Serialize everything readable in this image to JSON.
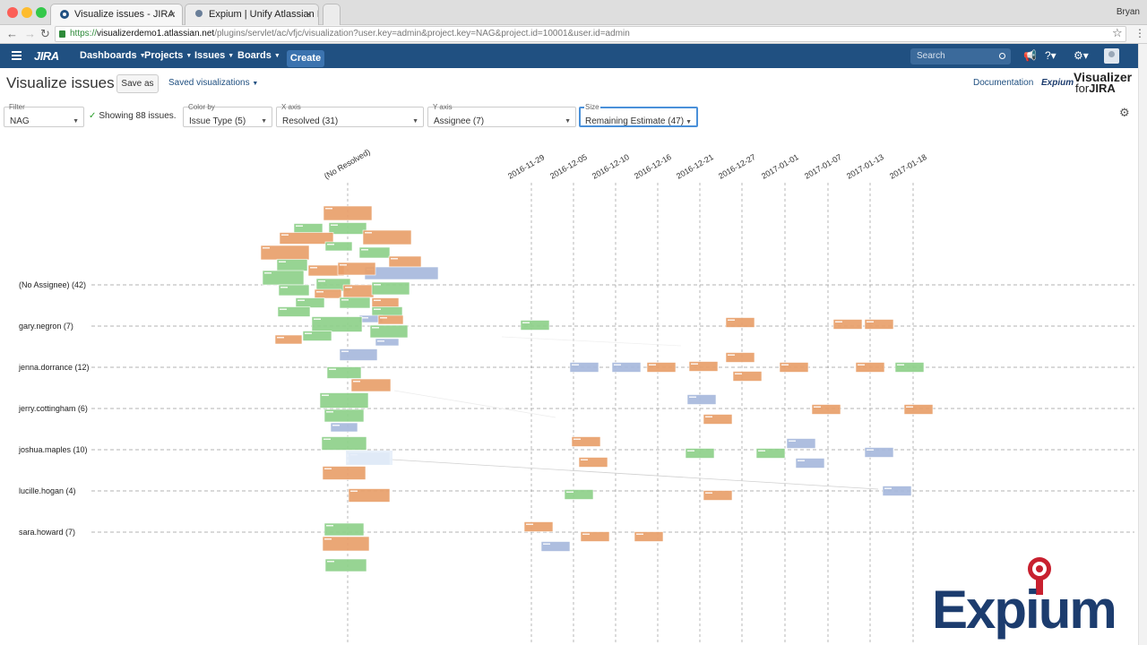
{
  "browser": {
    "tabs": [
      {
        "title": "Visualize issues - JIRA",
        "active": true
      },
      {
        "title": "Expium | Unify Atlassian Dep",
        "active": false
      }
    ],
    "profile": "Bryan",
    "url_scheme": "https://",
    "url_host": "visualizerdemo1.atlassian.net",
    "url_path": "/plugins/servlet/ac/vfjc/visualization?user.key=admin&project.key=NAG&project.id=10001&user.id=admin"
  },
  "header": {
    "logo": "JIRA",
    "nav": [
      "Dashboards",
      "Projects",
      "Issues",
      "Boards"
    ],
    "create": "Create",
    "search_placeholder": "Search",
    "bg_color": "#205081"
  },
  "page": {
    "title": "Visualize issues",
    "save_as": "Save as",
    "saved_visualizations": "Saved visualizations",
    "documentation": "Documentation",
    "expium_small": "Expium",
    "viz_logo_line1": "Visualizer",
    "viz_logo_line2a": "for",
    "viz_logo_line2b": "JIRA"
  },
  "controls": {
    "filter": {
      "label": "Filter",
      "value": "NAG"
    },
    "showing": "Showing 88 issues.",
    "color_by": {
      "label": "Color by",
      "value": "Issue Type (5)"
    },
    "x_axis": {
      "label": "X axis",
      "value": "Resolved (31)"
    },
    "y_axis": {
      "label": "Y axis",
      "value": "Assignee (7)"
    },
    "size": {
      "label": "Size",
      "value": "Remaining Estimate (47)"
    }
  },
  "chart_data": {
    "type": "scatter",
    "x_categories": [
      "(No Resolved)",
      "2016-11-29",
      "2016-12-05",
      "2016-12-10",
      "2016-12-16",
      "2016-12-21",
      "2016-12-27",
      "2017-01-01",
      "2017-01-07",
      "2017-01-13",
      "2017-01-18"
    ],
    "y_categories": [
      "(No Assignee) (42)",
      "gary.negron (7)",
      "jenna.dorrance (12)",
      "jerry.cottingham (6)",
      "joshua.maples (10)",
      "lucille.hogan (4)",
      "sara.howard (7)"
    ],
    "colors": {
      "orange": "#e8a06a",
      "green": "#8ed08a",
      "blue": "#a7b9dc"
    },
    "cards": [
      {
        "x": "(No Resolved)",
        "y": "(No Assignee) (42)",
        "color": "orange",
        "w": 54,
        "h": 16,
        "ox": 0,
        "oy": -80
      },
      {
        "x": "(No Resolved)",
        "y": "(No Assignee) (42)",
        "color": "green",
        "w": 42,
        "h": 13,
        "ox": 0,
        "oy": -63
      },
      {
        "x": "(No Resolved)",
        "y": "(No Assignee) (42)",
        "color": "green",
        "w": 32,
        "h": 11,
        "ox": -44,
        "oy": -63
      },
      {
        "x": "(No Resolved)",
        "y": "(No Assignee) (42)",
        "color": "orange",
        "w": 60,
        "h": 13,
        "ox": -46,
        "oy": -52
      },
      {
        "x": "(No Resolved)",
        "y": "(No Assignee) (42)",
        "color": "orange",
        "w": 54,
        "h": 16,
        "ox": 44,
        "oy": -53
      },
      {
        "x": "(No Resolved)",
        "y": "(No Assignee) (42)",
        "color": "orange",
        "w": 54,
        "h": 16,
        "ox": -70,
        "oy": -36
      },
      {
        "x": "(No Resolved)",
        "y": "(No Assignee) (42)",
        "color": "green",
        "w": 30,
        "h": 10,
        "ox": -10,
        "oy": -43
      },
      {
        "x": "(No Resolved)",
        "y": "(No Assignee) (42)",
        "color": "green",
        "w": 34,
        "h": 12,
        "ox": 30,
        "oy": -36
      },
      {
        "x": "(No Resolved)",
        "y": "(No Assignee) (42)",
        "color": "orange",
        "w": 36,
        "h": 12,
        "ox": 64,
        "oy": -26
      },
      {
        "x": "(No Resolved)",
        "y": "(No Assignee) (42)",
        "color": "blue",
        "w": 82,
        "h": 14,
        "ox": 60,
        "oy": -13
      },
      {
        "x": "(No Resolved)",
        "y": "(No Assignee) (42)",
        "color": "green",
        "w": 34,
        "h": 13,
        "ox": -62,
        "oy": -22
      },
      {
        "x": "(No Resolved)",
        "y": "(No Assignee) (42)",
        "color": "orange",
        "w": 40,
        "h": 12,
        "ox": -24,
        "oy": -16
      },
      {
        "x": "(No Resolved)",
        "y": "(No Assignee) (42)",
        "color": "green",
        "w": 46,
        "h": 16,
        "ox": -72,
        "oy": -8
      },
      {
        "x": "(No Resolved)",
        "y": "(No Assignee) (42)",
        "color": "orange",
        "w": 42,
        "h": 14,
        "ox": 10,
        "oy": -18
      },
      {
        "x": "(No Resolved)",
        "y": "(No Assignee) (42)",
        "color": "green",
        "w": 38,
        "h": 14,
        "ox": -16,
        "oy": 0
      },
      {
        "x": "(No Resolved)",
        "y": "(No Assignee) (42)",
        "color": "orange",
        "w": 34,
        "h": 14,
        "ox": 12,
        "oy": 7
      },
      {
        "x": "(No Resolved)",
        "y": "(No Assignee) (42)",
        "color": "green",
        "w": 42,
        "h": 14,
        "ox": 48,
        "oy": 4
      },
      {
        "x": "(No Resolved)",
        "y": "(No Assignee) (42)",
        "color": "green",
        "w": 34,
        "h": 12,
        "ox": -60,
        "oy": 6
      },
      {
        "x": "(No Resolved)",
        "y": "(No Assignee) (42)",
        "color": "orange",
        "w": 30,
        "h": 10,
        "ox": -22,
        "oy": 10
      },
      {
        "x": "(No Resolved)",
        "y": "(No Assignee) (42)",
        "color": "green",
        "w": 34,
        "h": 12,
        "ox": 8,
        "oy": 20
      },
      {
        "x": "(No Resolved)",
        "y": "(No Assignee) (42)",
        "color": "green",
        "w": 32,
        "h": 11,
        "ox": -42,
        "oy": 20
      },
      {
        "x": "(No Resolved)",
        "y": "(No Assignee) (42)",
        "color": "green",
        "w": 36,
        "h": 11,
        "ox": -60,
        "oy": 30
      },
      {
        "x": "(No Resolved)",
        "y": "(No Assignee) (42)",
        "color": "orange",
        "w": 30,
        "h": 11,
        "ox": 42,
        "oy": 20
      },
      {
        "x": "(No Resolved)",
        "y": "(No Assignee) (42)",
        "color": "green",
        "w": 34,
        "h": 11,
        "ox": 44,
        "oy": 30
      },
      {
        "x": "(No Resolved)",
        "y": "(No Assignee) (42)",
        "color": "blue",
        "w": 26,
        "h": 8,
        "ox": 26,
        "oy": 38
      },
      {
        "x": "(No Resolved)",
        "y": "gary.negron (7)",
        "color": "green",
        "w": 56,
        "h": 17,
        "ox": -12,
        "oy": -2
      },
      {
        "x": "(No Resolved)",
        "y": "gary.negron (7)",
        "color": "orange",
        "w": 28,
        "h": 10,
        "ox": 48,
        "oy": -7
      },
      {
        "x": "(No Resolved)",
        "y": "gary.negron (7)",
        "color": "green",
        "w": 42,
        "h": 14,
        "ox": 46,
        "oy": 6
      },
      {
        "x": "(No Resolved)",
        "y": "gary.negron (7)",
        "color": "green",
        "w": 32,
        "h": 11,
        "ox": -34,
        "oy": 11
      },
      {
        "x": "(No Resolved)",
        "y": "gary.negron (7)",
        "color": "orange",
        "w": 30,
        "h": 10,
        "ox": -66,
        "oy": 15
      },
      {
        "x": "(No Resolved)",
        "y": "gary.negron (7)",
        "color": "blue",
        "w": 26,
        "h": 8,
        "ox": 44,
        "oy": 18
      },
      {
        "x": "(No Resolved)",
        "y": "gary.negron (7)",
        "color": "blue",
        "w": 42,
        "h": 13,
        "ox": 12,
        "oy": 32
      },
      {
        "x": "(No Resolved)",
        "y": "jenna.dorrance (12)",
        "color": "green",
        "w": 38,
        "h": 13,
        "ox": -4,
        "oy": 6
      },
      {
        "x": "(No Resolved)",
        "y": "jenna.dorrance (12)",
        "color": "orange",
        "w": 44,
        "h": 14,
        "ox": 26,
        "oy": 20
      },
      {
        "x": "(No Resolved)",
        "y": "jerry.cottingham (6)",
        "color": "green",
        "w": 54,
        "h": 17,
        "ox": -4,
        "oy": -9
      },
      {
        "x": "(No Resolved)",
        "y": "jerry.cottingham (6)",
        "color": "green",
        "w": 44,
        "h": 14,
        "ox": -4,
        "oy": 8
      },
      {
        "x": "(No Resolved)",
        "y": "jerry.cottingham (6)",
        "color": "blue",
        "w": 30,
        "h": 10,
        "ox": -4,
        "oy": 21
      },
      {
        "x": "(No Resolved)",
        "y": "joshua.maples (10)",
        "color": "green",
        "w": 50,
        "h": 15,
        "ox": -4,
        "oy": -7
      },
      {
        "x": "(No Resolved)",
        "y": "joshua.maples (10)",
        "color": "blue",
        "w": 46,
        "h": 14,
        "ox": 24,
        "oy": 10
      },
      {
        "x": "(No Resolved)",
        "y": "joshua.maples (10)",
        "color": "orange",
        "w": 48,
        "h": 15,
        "ox": -4,
        "oy": 26
      },
      {
        "x": "(No Resolved)",
        "y": "lucille.hogan (4)",
        "color": "orange",
        "w": 46,
        "h": 15,
        "ox": 24,
        "oy": 5
      },
      {
        "x": "(No Resolved)",
        "y": "sara.howard (7)",
        "color": "green",
        "w": 44,
        "h": 14,
        "ox": -4,
        "oy": -3
      },
      {
        "x": "(No Resolved)",
        "y": "sara.howard (7)",
        "color": "orange",
        "w": 52,
        "h": 16,
        "ox": -2,
        "oy": 13
      },
      {
        "x": "(No Resolved)",
        "y": "sara.howard (7)",
        "color": "green",
        "w": 46,
        "h": 14,
        "ox": -2,
        "oy": 37
      },
      {
        "x": "2016-11-29",
        "y": "gary.negron (7)",
        "color": "green",
        "w": 32,
        "h": 11,
        "ox": 4,
        "oy": -1
      },
      {
        "x": "2016-11-29",
        "y": "sara.howard (7)",
        "color": "orange",
        "w": 32,
        "h": 11,
        "ox": 8,
        "oy": -6
      },
      {
        "x": "2016-12-05",
        "y": "jenna.dorrance (12)",
        "color": "blue",
        "w": 32,
        "h": 11,
        "ox": 12,
        "oy": 0
      },
      {
        "x": "2016-12-05",
        "y": "joshua.maples (10)",
        "color": "orange",
        "w": 32,
        "h": 11,
        "ox": 14,
        "oy": -9
      },
      {
        "x": "2016-12-05",
        "y": "joshua.maples (10)",
        "color": "orange",
        "w": 32,
        "h": 11,
        "ox": 22,
        "oy": 14
      },
      {
        "x": "2016-12-05",
        "y": "lucille.hogan (4)",
        "color": "green",
        "w": 32,
        "h": 11,
        "ox": 6,
        "oy": 4
      },
      {
        "x": "2016-12-05",
        "y": "sara.howard (7)",
        "color": "blue",
        "w": 32,
        "h": 11,
        "ox": -20,
        "oy": 16
      },
      {
        "x": "2016-12-05",
        "y": "sara.howard (7)",
        "color": "orange",
        "w": 32,
        "h": 11,
        "ox": 24,
        "oy": 5
      },
      {
        "x": "2016-12-10",
        "y": "jenna.dorrance (12)",
        "color": "blue",
        "w": 32,
        "h": 11,
        "ox": 12,
        "oy": 0
      },
      {
        "x": "2016-12-16",
        "y": "jenna.dorrance (12)",
        "color": "orange",
        "w": 32,
        "h": 11,
        "ox": 4,
        "oy": 0
      },
      {
        "x": "2016-12-16",
        "y": "sara.howard (7)",
        "color": "orange",
        "w": 32,
        "h": 11,
        "ox": -10,
        "oy": 5
      },
      {
        "x": "2016-12-21",
        "y": "jenna.dorrance (12)",
        "color": "orange",
        "w": 32,
        "h": 11,
        "ox": 4,
        "oy": -1
      },
      {
        "x": "2016-12-21",
        "y": "jerry.cottingham (6)",
        "color": "blue",
        "w": 32,
        "h": 11,
        "ox": 2,
        "oy": -10
      },
      {
        "x": "2016-12-21",
        "y": "jerry.cottingham (6)",
        "color": "orange",
        "w": 32,
        "h": 11,
        "ox": 20,
        "oy": 12
      },
      {
        "x": "2016-12-21",
        "y": "joshua.maples (10)",
        "color": "green",
        "w": 32,
        "h": 11,
        "ox": 0,
        "oy": 4
      },
      {
        "x": "2016-12-21",
        "y": "lucille.hogan (4)",
        "color": "orange",
        "w": 32,
        "h": 11,
        "ox": 20,
        "oy": 5
      },
      {
        "x": "2016-12-27",
        "y": "gary.negron (7)",
        "color": "orange",
        "w": 32,
        "h": 11,
        "ox": -2,
        "oy": -4
      },
      {
        "x": "2016-12-27",
        "y": "jenna.dorrance (12)",
        "color": "orange",
        "w": 32,
        "h": 11,
        "ox": -2,
        "oy": -11
      },
      {
        "x": "2016-12-27",
        "y": "jenna.dorrance (12)",
        "color": "orange",
        "w": 32,
        "h": 11,
        "ox": 6,
        "oy": 10
      },
      {
        "x": "2017-01-01",
        "y": "jenna.dorrance (12)",
        "color": "orange",
        "w": 32,
        "h": 11,
        "ox": 10,
        "oy": 0
      },
      {
        "x": "2017-01-01",
        "y": "joshua.maples (10)",
        "color": "green",
        "w": 32,
        "h": 11,
        "ox": -16,
        "oy": 4
      },
      {
        "x": "2017-01-01",
        "y": "joshua.maples (10)",
        "color": "blue",
        "w": 32,
        "h": 11,
        "ox": 18,
        "oy": -7
      },
      {
        "x": "2017-01-01",
        "y": "joshua.maples (10)",
        "color": "blue",
        "w": 32,
        "h": 11,
        "ox": 28,
        "oy": 15
      },
      {
        "x": "2017-01-07",
        "y": "gary.negron (7)",
        "color": "orange",
        "w": 32,
        "h": 11,
        "ox": 22,
        "oy": -2
      },
      {
        "x": "2017-01-07",
        "y": "jerry.cottingham (6)",
        "color": "orange",
        "w": 32,
        "h": 11,
        "ox": -2,
        "oy": 1
      },
      {
        "x": "2017-01-13",
        "y": "gary.negron (7)",
        "color": "orange",
        "w": 32,
        "h": 11,
        "ox": 10,
        "oy": -2
      },
      {
        "x": "2017-01-13",
        "y": "jenna.dorrance (12)",
        "color": "orange",
        "w": 32,
        "h": 11,
        "ox": 0,
        "oy": 0
      },
      {
        "x": "2017-01-13",
        "y": "joshua.maples (10)",
        "color": "blue",
        "w": 32,
        "h": 11,
        "ox": 10,
        "oy": 3
      },
      {
        "x": "2017-01-13",
        "y": "lucille.hogan (4)",
        "color": "blue",
        "w": 32,
        "h": 11,
        "ox": 30,
        "oy": 0
      },
      {
        "x": "2017-01-18",
        "y": "jenna.dorrance (12)",
        "color": "green",
        "w": 32,
        "h": 11,
        "ox": -4,
        "oy": 0
      },
      {
        "x": "2017-01-18",
        "y": "jerry.cottingham (6)",
        "color": "orange",
        "w": 32,
        "h": 11,
        "ox": 6,
        "oy": 1
      }
    ]
  },
  "branding": {
    "expium_big": "Expium"
  }
}
